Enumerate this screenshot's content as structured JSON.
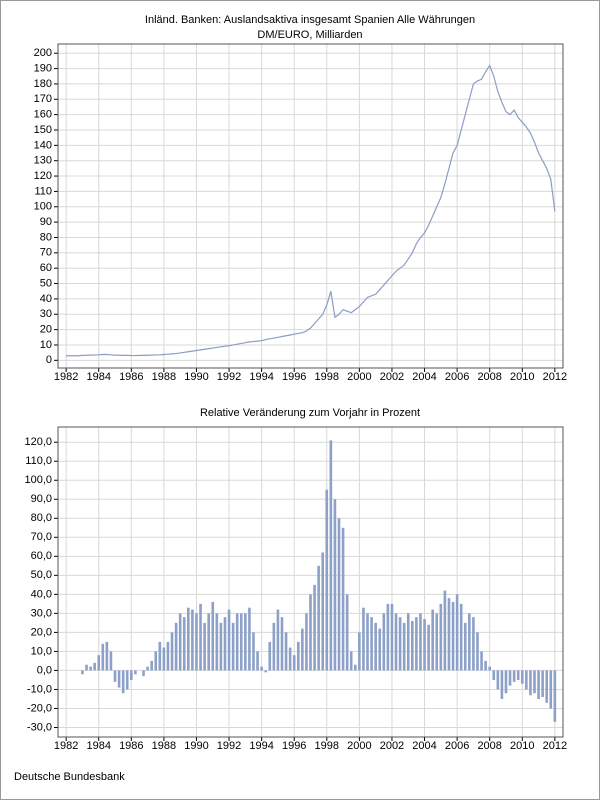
{
  "chart_data": [
    {
      "type": "line",
      "title": "Inländ. Banken: Auslandsaktiva insgesamt Spanien Alle Währungen",
      "subtitle": "DM/EURO, Milliarden",
      "color": "#8c9cc8",
      "grid": true,
      "xlim": [
        1981.5,
        2012.5
      ],
      "xticks": [
        1982,
        1984,
        1986,
        1988,
        1990,
        1992,
        1994,
        1996,
        1998,
        2000,
        2002,
        2004,
        2006,
        2008,
        2010,
        2012
      ],
      "ylim": [
        -5,
        206
      ],
      "yticks": [
        0,
        10,
        20,
        30,
        40,
        50,
        60,
        70,
        80,
        90,
        100,
        110,
        120,
        130,
        140,
        150,
        160,
        170,
        180,
        190,
        200
      ],
      "x": [
        1982,
        1982.25,
        1982.5,
        1982.75,
        1983,
        1983.25,
        1983.5,
        1983.75,
        1984,
        1984.25,
        1984.5,
        1984.75,
        1985,
        1985.25,
        1985.5,
        1985.75,
        1986,
        1986.25,
        1986.5,
        1986.75,
        1987,
        1987.25,
        1987.5,
        1987.75,
        1988,
        1988.25,
        1988.5,
        1988.75,
        1989,
        1989.25,
        1989.5,
        1989.75,
        1990,
        1990.25,
        1990.5,
        1990.75,
        1991,
        1991.25,
        1991.5,
        1991.75,
        1992,
        1992.25,
        1992.5,
        1992.75,
        1993,
        1993.25,
        1993.5,
        1993.75,
        1994,
        1994.25,
        1994.5,
        1994.75,
        1995,
        1995.25,
        1995.5,
        1995.75,
        1996,
        1996.25,
        1996.5,
        1996.75,
        1997,
        1997.25,
        1997.5,
        1997.75,
        1998,
        1998.25,
        1998.5,
        1998.75,
        1999,
        1999.25,
        1999.5,
        1999.75,
        2000,
        2000.25,
        2000.5,
        2000.75,
        2001,
        2001.25,
        2001.5,
        2001.75,
        2002,
        2002.25,
        2002.5,
        2002.75,
        2003,
        2003.25,
        2003.5,
        2003.75,
        2004,
        2004.25,
        2004.5,
        2004.75,
        2005,
        2005.25,
        2005.5,
        2005.75,
        2006,
        2006.25,
        2006.5,
        2006.75,
        2007,
        2007.25,
        2007.5,
        2007.75,
        2008,
        2008.25,
        2008.5,
        2008.75,
        2009,
        2009.25,
        2009.5,
        2009.75,
        2010,
        2010.25,
        2010.5,
        2010.75,
        2011,
        2011.25,
        2011.5,
        2011.75,
        2012
      ],
      "values": [
        3,
        3,
        3,
        3,
        3.2,
        3.3,
        3.4,
        3.5,
        3.6,
        3.8,
        3.8,
        3.6,
        3.4,
        3.3,
        3.2,
        3.2,
        3.1,
        3.1,
        3.2,
        3.2,
        3.3,
        3.4,
        3.5,
        3.6,
        3.8,
        4,
        4.2,
        4.4,
        4.8,
        5.2,
        5.6,
        6,
        6.4,
        6.8,
        7.2,
        7.6,
        8,
        8.4,
        8.8,
        9.2,
        9.5,
        10,
        10.5,
        11,
        11.5,
        12,
        12.2,
        12.5,
        12.8,
        13.5,
        14,
        14.5,
        15,
        15.5,
        16,
        16.5,
        17,
        17.5,
        18,
        19,
        21,
        24,
        27,
        30,
        36,
        45,
        28,
        30,
        33,
        32,
        31,
        33,
        35,
        38,
        41,
        42,
        43,
        46,
        49,
        52,
        55,
        58,
        60,
        62,
        66,
        70,
        76,
        80,
        83,
        88,
        94,
        100,
        106,
        115,
        125,
        135,
        140,
        150,
        160,
        170,
        180,
        182,
        183,
        188,
        192,
        185,
        175,
        168,
        162,
        160,
        163,
        158,
        155,
        152,
        148,
        142,
        135,
        130,
        125,
        118,
        97
      ]
    },
    {
      "type": "bar",
      "title": "Relative Veränderung zum Vorjahr in Prozent",
      "color": "#8ca0c8",
      "grid": true,
      "xlim": [
        1981.5,
        2012.5
      ],
      "xticks": [
        1982,
        1984,
        1986,
        1988,
        1990,
        1992,
        1994,
        1996,
        1998,
        2000,
        2002,
        2004,
        2006,
        2008,
        2010,
        2012
      ],
      "ylim": [
        -35,
        128
      ],
      "yticks": [
        {
          "value": -30,
          "label": "-30,0"
        },
        {
          "value": -20,
          "label": "-20,0"
        },
        {
          "value": -10,
          "label": "-10,0"
        },
        {
          "value": 0,
          "label": "0,0"
        },
        {
          "value": 10,
          "label": "10,0"
        },
        {
          "value": 20,
          "label": "20,0"
        },
        {
          "value": 30,
          "label": "30,0"
        },
        {
          "value": 40,
          "label": "40,0"
        },
        {
          "value": 50,
          "label": "50,0"
        },
        {
          "value": 60,
          "label": "60,0"
        },
        {
          "value": 70,
          "label": "70,0"
        },
        {
          "value": 80,
          "label": "80,0"
        },
        {
          "value": 90,
          "label": "90,0"
        },
        {
          "value": 100,
          "label": "100,0"
        },
        {
          "value": 110,
          "label": "110,0"
        },
        {
          "value": 120,
          "label": "120,0"
        }
      ],
      "x": [
        1983,
        1983.25,
        1983.5,
        1983.75,
        1984,
        1984.25,
        1984.5,
        1984.75,
        1985,
        1985.25,
        1985.5,
        1985.75,
        1986,
        1986.25,
        1986.5,
        1986.75,
        1987,
        1987.25,
        1987.5,
        1987.75,
        1988,
        1988.25,
        1988.5,
        1988.75,
        1989,
        1989.25,
        1989.5,
        1989.75,
        1990,
        1990.25,
        1990.5,
        1990.75,
        1991,
        1991.25,
        1991.5,
        1991.75,
        1992,
        1992.25,
        1992.5,
        1992.75,
        1993,
        1993.25,
        1993.5,
        1993.75,
        1994,
        1994.25,
        1994.5,
        1994.75,
        1995,
        1995.25,
        1995.5,
        1995.75,
        1996,
        1996.25,
        1996.5,
        1996.75,
        1997,
        1997.25,
        1997.5,
        1997.75,
        1998,
        1998.25,
        1998.5,
        1998.75,
        1999,
        1999.25,
        1999.5,
        1999.75,
        2000,
        2000.25,
        2000.5,
        2000.75,
        2001,
        2001.25,
        2001.5,
        2001.75,
        2002,
        2002.25,
        2002.5,
        2002.75,
        2003,
        2003.25,
        2003.5,
        2003.75,
        2004,
        2004.25,
        2004.5,
        2004.75,
        2005,
        2005.25,
        2005.5,
        2005.75,
        2006,
        2006.25,
        2006.5,
        2006.75,
        2007,
        2007.25,
        2007.5,
        2007.75,
        2008,
        2008.25,
        2008.5,
        2008.75,
        2009,
        2009.25,
        2009.5,
        2009.75,
        2010,
        2010.25,
        2010.5,
        2010.75,
        2011,
        2011.25,
        2011.5,
        2011.75,
        2012
      ],
      "values": [
        -2,
        3,
        2,
        4,
        8,
        14,
        15,
        10,
        -6,
        -9,
        -12,
        -10,
        -5,
        -2,
        0,
        -3,
        2,
        5,
        10,
        15,
        12,
        15,
        20,
        25,
        30,
        28,
        33,
        32,
        30,
        35,
        25,
        30,
        36,
        30,
        25,
        28,
        32,
        25,
        30,
        30,
        30,
        33,
        20,
        10,
        2,
        -1,
        15,
        25,
        32,
        28,
        20,
        12,
        8,
        15,
        22,
        30,
        40,
        45,
        55,
        62,
        95,
        121,
        90,
        80,
        75,
        40,
        10,
        3,
        20,
        33,
        30,
        28,
        25,
        22,
        30,
        35,
        35,
        30,
        28,
        25,
        30,
        26,
        28,
        30,
        27,
        24,
        32,
        30,
        35,
        42,
        38,
        36,
        40,
        35,
        25,
        30,
        28,
        20,
        10,
        5,
        2,
        -5,
        -10,
        -15,
        -12,
        -8,
        -6,
        -5,
        -7,
        -10,
        -13,
        -12,
        -15,
        -14,
        -17,
        -20,
        -27
      ]
    }
  ],
  "footer": "Deutsche Bundesbank"
}
